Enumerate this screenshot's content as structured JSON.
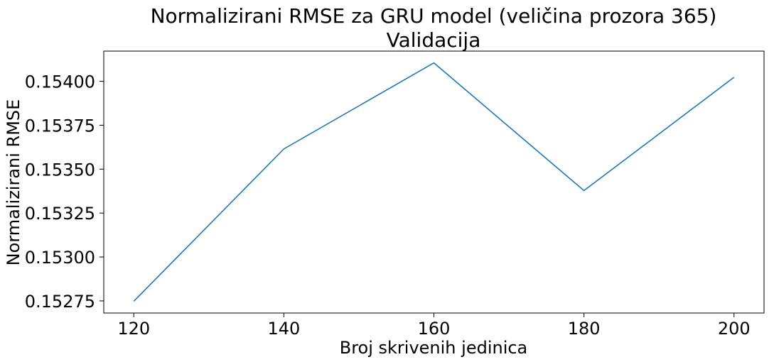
{
  "chart_data": {
    "type": "line",
    "title": "Normalizirani RMSE za GRU model (veličina prozora 365)",
    "subtitle": "Validacija",
    "xlabel": "Broj skrivenih jedinica",
    "ylabel": "Normalizirani RMSE",
    "x": [
      120,
      140,
      160,
      180,
      200
    ],
    "series": [
      {
        "values": [
          0.152748,
          0.153615,
          0.154105,
          0.153378,
          0.154023
        ]
      }
    ],
    "xticks": [
      120,
      140,
      160,
      180,
      200
    ],
    "xtick_labels": [
      "120",
      "140",
      "160",
      "180",
      "200"
    ],
    "yticks": [
      0.15275,
      0.153,
      0.15325,
      0.1535,
      0.15375,
      0.154
    ],
    "ytick_labels": [
      "0.15275",
      "0.15300",
      "0.15325",
      "0.15350",
      "0.15375",
      "0.15400"
    ],
    "xlim": [
      116,
      204
    ],
    "ylim": [
      0.152681,
      0.154172
    ],
    "line_color": "#1f77b4",
    "grid": false,
    "legend": "none"
  }
}
